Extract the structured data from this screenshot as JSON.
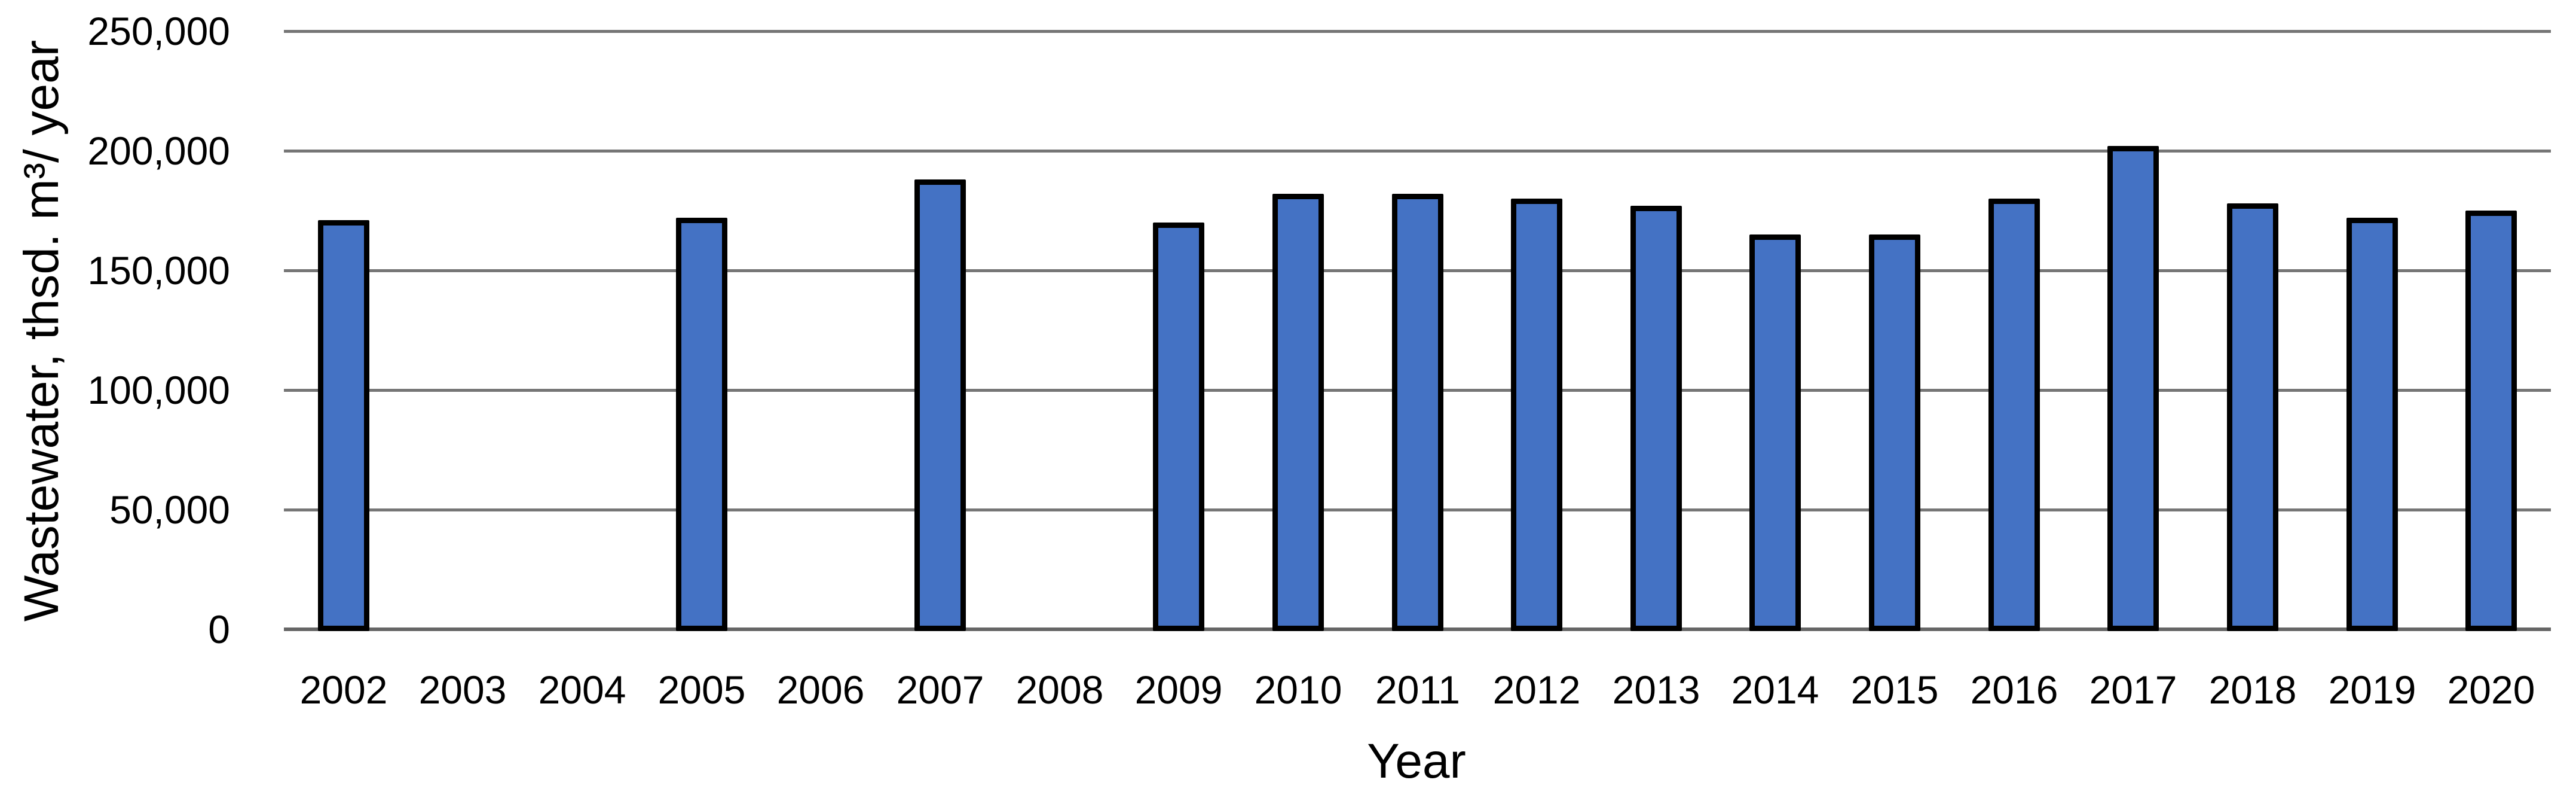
{
  "chart_data": {
    "type": "bar",
    "title": "",
    "xlabel": "Year",
    "ylabel": "Wastewater, thsd. m³/ year",
    "categories": [
      "2002",
      "2003",
      "2004",
      "2005",
      "2006",
      "2007",
      "2008",
      "2009",
      "2010",
      "2011",
      "2012",
      "2013",
      "2014",
      "2015",
      "2016",
      "2017",
      "2018",
      "2019",
      "2020"
    ],
    "values": [
      171000,
      null,
      null,
      172000,
      null,
      188000,
      null,
      170000,
      182000,
      182000,
      180000,
      177000,
      165000,
      165000,
      180000,
      202000,
      178000,
      172000,
      175000
    ],
    "ylim": [
      0,
      250000
    ],
    "ytick_step": 50000,
    "ytick_labels": [
      "0",
      "50,000",
      "100,000",
      "150,000",
      "200,000",
      "250,000"
    ],
    "grid": "horizontal-major",
    "legend": "none",
    "bar_color": "#4472C4",
    "bar_border_color": "#000000",
    "gridline_color": "#767676",
    "axis_line_color": "#666666",
    "text_color": "#000000"
  }
}
